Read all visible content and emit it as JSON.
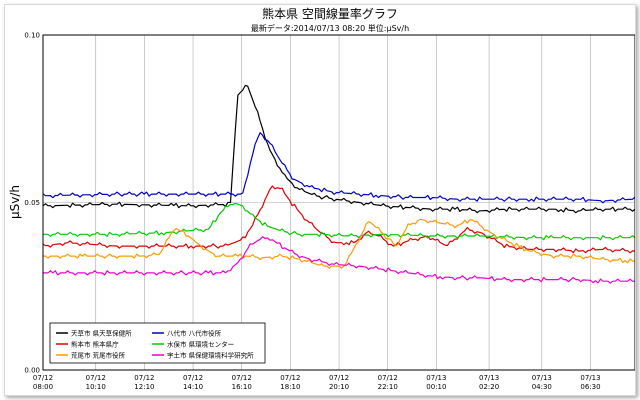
{
  "chart_data": {
    "type": "line",
    "title": "熊本県 空間線量率グラフ",
    "subtitle": "最新データ:2014/07/13 08:20 単位:μSv/h",
    "ylabel": "μSv/h",
    "xlabel": "",
    "ylim": [
      0,
      0.1
    ],
    "yticks": [
      "0.00",
      "0.05",
      "0.10"
    ],
    "yticks_values": [
      0,
      0.05,
      0.1
    ],
    "grid": true,
    "legend_position": "bottom-left",
    "x_range": [
      0,
      24.33
    ],
    "x_unit": "hours since 07/12 08:00",
    "xticks": [
      {
        "date": "07/12",
        "time": "08:00",
        "x": 0
      },
      {
        "date": "07/12",
        "time": "10:10",
        "x": 2.167
      },
      {
        "date": "07/12",
        "time": "12:10",
        "x": 4.167
      },
      {
        "date": "07/12",
        "time": "14:10",
        "x": 6.167
      },
      {
        "date": "07/12",
        "time": "16:10",
        "x": 8.167
      },
      {
        "date": "07/12",
        "time": "18:10",
        "x": 10.167
      },
      {
        "date": "07/12",
        "time": "20:10",
        "x": 12.167
      },
      {
        "date": "07/12",
        "time": "22:10",
        "x": 14.167
      },
      {
        "date": "07/13",
        "time": "00:10",
        "x": 16.167
      },
      {
        "date": "07/13",
        "time": "02:20",
        "x": 18.333
      },
      {
        "date": "07/13",
        "time": "04:30",
        "x": 20.5
      },
      {
        "date": "07/13",
        "time": "06:30",
        "x": 22.5
      }
    ],
    "series": [
      {
        "name": "天草市 県天草保健所",
        "color": "#000000",
        "x": [
          0,
          3,
          6,
          7.7,
          8.0,
          8.4,
          8.8,
          9.3,
          9.9,
          10.5,
          11.2,
          12,
          13,
          14,
          15,
          16,
          17,
          18,
          19,
          20,
          21,
          22,
          23,
          24.33
        ],
        "y": [
          0.049,
          0.0495,
          0.049,
          0.0495,
          0.082,
          0.085,
          0.077,
          0.066,
          0.058,
          0.054,
          0.052,
          0.051,
          0.05,
          0.049,
          0.0485,
          0.048,
          0.048,
          0.0475,
          0.048,
          0.048,
          0.048,
          0.0475,
          0.048,
          0.048
        ]
      },
      {
        "name": "八代市 八代市役所",
        "color": "#0000cc",
        "x": [
          0,
          3,
          6,
          7.5,
          8.2,
          8.6,
          8.9,
          9.3,
          9.8,
          10.3,
          11,
          12,
          13,
          14,
          15,
          16,
          17,
          18,
          19,
          20,
          21,
          22,
          23,
          24.33
        ],
        "y": [
          0.052,
          0.0525,
          0.0525,
          0.0525,
          0.0525,
          0.064,
          0.071,
          0.068,
          0.062,
          0.057,
          0.0545,
          0.053,
          0.0525,
          0.052,
          0.0515,
          0.0515,
          0.051,
          0.051,
          0.051,
          0.051,
          0.051,
          0.051,
          0.0505,
          0.051
        ]
      },
      {
        "name": "熊本市 熊本県庁",
        "color": "#dd0000",
        "x": [
          0,
          1,
          3,
          6,
          7.5,
          8.2,
          8.6,
          9.0,
          9.4,
          9.8,
          10.2,
          10.8,
          11.4,
          12.0,
          12.8,
          13.3,
          13.8,
          14.4,
          15,
          15.8,
          16.6,
          17.4,
          18,
          19,
          20,
          21,
          22,
          23,
          24.33
        ],
        "y": [
          0.037,
          0.038,
          0.037,
          0.037,
          0.037,
          0.039,
          0.043,
          0.049,
          0.055,
          0.054,
          0.05,
          0.045,
          0.041,
          0.038,
          0.038,
          0.041,
          0.04,
          0.037,
          0.0385,
          0.04,
          0.037,
          0.042,
          0.041,
          0.037,
          0.036,
          0.036,
          0.0355,
          0.036,
          0.0355
        ]
      },
      {
        "name": "水俣市 県環境センター",
        "color": "#00cc00",
        "x": [
          0,
          3,
          5,
          6.8,
          7.3,
          7.8,
          8.2,
          8.6,
          9.2,
          9.8,
          10.5,
          11.5,
          12.5,
          14,
          16,
          18,
          20,
          22,
          24.33
        ],
        "y": [
          0.0405,
          0.0405,
          0.041,
          0.042,
          0.047,
          0.05,
          0.049,
          0.046,
          0.043,
          0.0415,
          0.0405,
          0.0405,
          0.04,
          0.0405,
          0.04,
          0.04,
          0.0395,
          0.0395,
          0.0395
        ]
      },
      {
        "name": "荒尾市 荒尾市役所",
        "color": "#ff9900",
        "x": [
          0,
          2,
          4,
          4.8,
          5.4,
          5.9,
          6.4,
          6.8,
          7.2,
          7.8,
          8.4,
          9.0,
          9.8,
          10.6,
          11.5,
          12.4,
          12.9,
          13.4,
          14.0,
          14.5,
          15.0,
          15.5,
          16.2,
          17,
          17.6,
          18.4,
          19.2,
          20,
          21,
          22,
          23,
          24.33
        ],
        "y": [
          0.034,
          0.034,
          0.034,
          0.0345,
          0.0425,
          0.0405,
          0.0375,
          0.0355,
          0.034,
          0.034,
          0.034,
          0.0335,
          0.034,
          0.033,
          0.031,
          0.031,
          0.038,
          0.0445,
          0.0405,
          0.037,
          0.043,
          0.045,
          0.044,
          0.043,
          0.045,
          0.041,
          0.038,
          0.0355,
          0.034,
          0.034,
          0.033,
          0.0325
        ]
      },
      {
        "name": "宇土市 県保健環境科学研究所",
        "color": "#ee00cc",
        "x": [
          0,
          2,
          4,
          6,
          7.5,
          8.0,
          8.5,
          8.9,
          9.3,
          9.8,
          10.4,
          11,
          12,
          13,
          14,
          15,
          16,
          17,
          18,
          19,
          20,
          21,
          22,
          23,
          24.33
        ],
        "y": [
          0.029,
          0.029,
          0.029,
          0.029,
          0.029,
          0.032,
          0.037,
          0.039,
          0.0395,
          0.037,
          0.0345,
          0.033,
          0.0315,
          0.031,
          0.03,
          0.029,
          0.028,
          0.0275,
          0.0275,
          0.027,
          0.027,
          0.027,
          0.027,
          0.0265,
          0.0265
        ]
      }
    ]
  }
}
